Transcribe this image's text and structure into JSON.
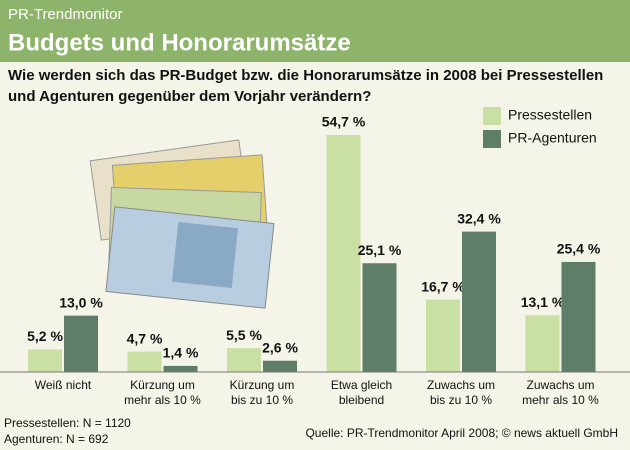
{
  "kicker": "PR-Trendmonitor",
  "title": "Budgets und Honorarumsätze",
  "chart_data": {
    "type": "bar",
    "subtitle": [
      "Wie werden sich das PR-Budget bzw. die Honorarumsätze in 2008 bei Pressestellen",
      "und Agenturen gegenüber dem Vorjahr verändern?"
    ],
    "categories": [
      [
        "Weiß nicht"
      ],
      [
        "Kürzung um",
        "mehr als 10 %"
      ],
      [
        "Kürzung um",
        "bis zu 10 %"
      ],
      [
        "Etwa gleich",
        "bleibend"
      ],
      [
        "Zuwachs um",
        "bis zu 10 %"
      ],
      [
        "Zuwachs um",
        "mehr als 10 %"
      ]
    ],
    "series": [
      {
        "name": "Pressestellen",
        "color": "#c9dfa3",
        "values": [
          5.2,
          4.7,
          5.5,
          54.7,
          16.7,
          13.1
        ],
        "value_labels": [
          "5,2 %",
          "4,7 %",
          "5,5 %",
          "54,7 %",
          "16,7 %",
          "13,1 %"
        ]
      },
      {
        "name": "PR-Agenturen",
        "color": "#5e7e69",
        "values": [
          13.0,
          1.4,
          2.6,
          25.1,
          32.4,
          25.4
        ],
        "value_labels": [
          "13,0 %",
          "1,4 %",
          "2,6 %",
          "25,1 %",
          "32,4 %",
          "25,4 %"
        ]
      }
    ],
    "legend": "top-right",
    "notes": [
      "Pressestellen: N = 1120",
      "Agenturen: N = 692"
    ],
    "source": "Quelle: PR-Trendmonitor April 2008; © news aktuell GmbH"
  }
}
